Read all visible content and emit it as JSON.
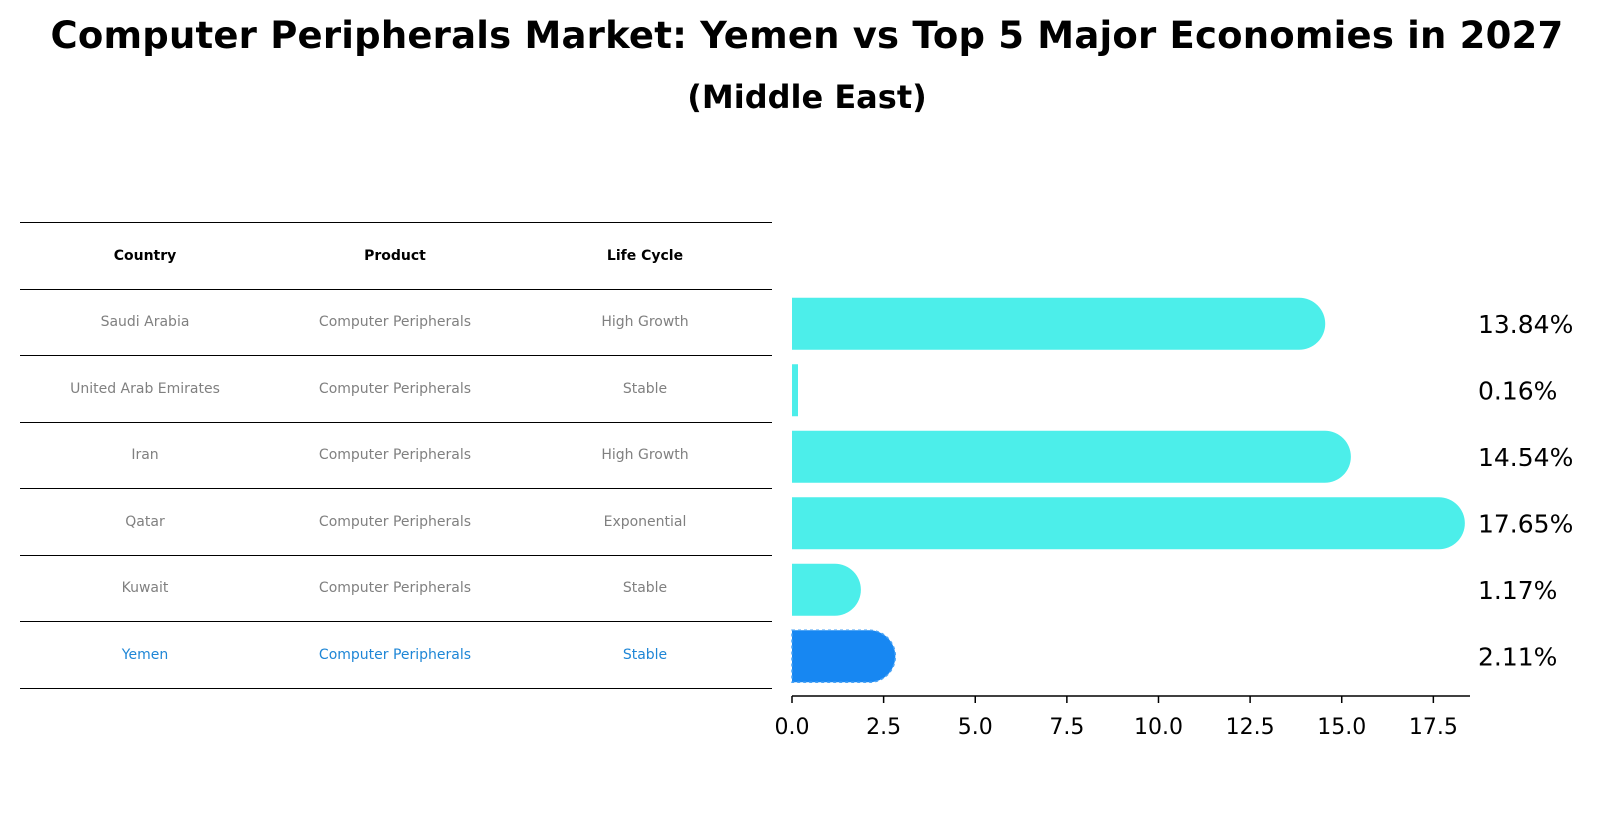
{
  "title": "Computer Peripherals Market: Yemen vs Top 5 Major Economies in 2027",
  "subtitle": "(Middle East)",
  "table": {
    "headers": [
      "Country",
      "Product",
      "Life Cycle"
    ],
    "rows": [
      [
        "Saudi Arabia",
        "Computer Peripherals",
        "High Growth"
      ],
      [
        "United Arab Emirates",
        "Computer Peripherals",
        "Stable"
      ],
      [
        "Iran",
        "Computer Peripherals",
        "High Growth"
      ],
      [
        "Qatar",
        "Computer Peripherals",
        "Exponential"
      ],
      [
        "Kuwait",
        "Computer Peripherals",
        "Stable"
      ],
      [
        "Yemen",
        "Computer Peripherals",
        "Stable"
      ]
    ]
  },
  "chart_data": {
    "type": "bar",
    "orientation": "horizontal",
    "categories": [
      "Saudi Arabia",
      "United Arab Emirates",
      "Iran",
      "Qatar",
      "Kuwait",
      "Yemen"
    ],
    "values": [
      13.84,
      0.16,
      14.54,
      17.65,
      1.17,
      2.11
    ],
    "value_labels": [
      "13.84%",
      "0.16%",
      "14.54%",
      "17.65%",
      "1.17%",
      "2.11%"
    ],
    "highlight": "Yemen",
    "xlim": [
      0,
      18.5
    ],
    "xticks": [
      0.0,
      2.5,
      5.0,
      7.5,
      10.0,
      12.5,
      15.0,
      17.5
    ],
    "xtick_labels": [
      "0.0",
      "2.5",
      "5.0",
      "7.5",
      "10.0",
      "12.5",
      "15.0",
      "17.5"
    ],
    "colors": {
      "bar": "#4ceeea",
      "highlight": "#1787f2"
    }
  }
}
